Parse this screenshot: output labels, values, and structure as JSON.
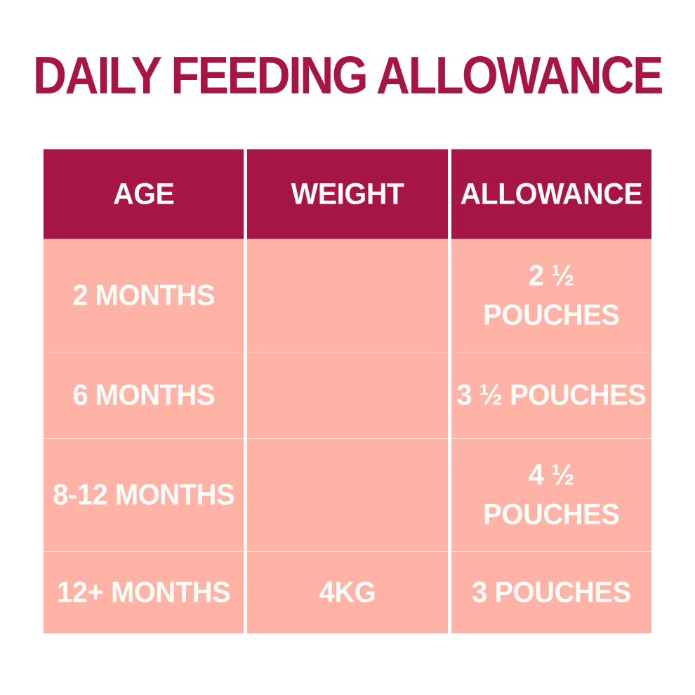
{
  "page": {
    "title": "DAILY FEEDING ALLOWANCE"
  },
  "colors": {
    "crimson": "#A61543",
    "pink": "#FFB2A6",
    "text_light": "#FFFDFA",
    "background": "#FFFFFF"
  },
  "table": {
    "headers": [
      "AGE",
      "WEIGHT",
      "ALLOWANCE"
    ],
    "rows": [
      {
        "age": "2 MONTHS",
        "weight": "",
        "allowance": [
          "2 ½",
          "POUCHES"
        ]
      },
      {
        "age": "6 MONTHS",
        "weight": "",
        "allowance": [
          "3 ½ POUCHES"
        ]
      },
      {
        "age": "8-12 MONTHS",
        "weight": "",
        "allowance": [
          "4 ½",
          "POUCHES"
        ]
      },
      {
        "age": "12+ MONTHS",
        "weight": "4KG",
        "allowance": [
          "3 POUCHES"
        ]
      }
    ]
  },
  "chart_data": {
    "type": "table",
    "title": "DAILY FEEDING ALLOWANCE",
    "columns": [
      "AGE",
      "WEIGHT",
      "ALLOWANCE"
    ],
    "rows": [
      [
        "2 MONTHS",
        "",
        "2 ½ POUCHES"
      ],
      [
        "6 MONTHS",
        "",
        "3 ½ POUCHES"
      ],
      [
        "8-12 MONTHS",
        "",
        "4 ½ POUCHES"
      ],
      [
        "12+ MONTHS",
        "4KG",
        "3 POUCHES"
      ]
    ]
  }
}
